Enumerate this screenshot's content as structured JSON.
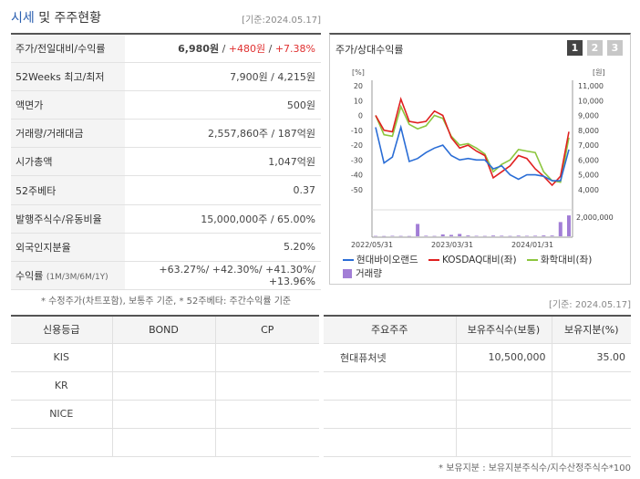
{
  "header": {
    "title_main": "시세",
    "title_rest": " 및 주주현황",
    "asof": "[기준:2024.05.17]"
  },
  "price_rows": [
    {
      "label": "주가/전일대비/수익률",
      "main": "6,980원",
      "sep1": " / ",
      "change": "+480원",
      "sep2": " / ",
      "rate": "+7.38%"
    },
    {
      "label": "52Weeks 최고/최저",
      "value": "7,900원 / 4,215원"
    },
    {
      "label": "액면가",
      "value": "500원"
    },
    {
      "label": "거래량/거래대금",
      "value": "2,557,860주 / 187억원"
    },
    {
      "label": "시가총액",
      "value": "1,047억원"
    },
    {
      "label": "52주베타",
      "value": "0.37"
    },
    {
      "label": "발행주식수/유동비율",
      "value": "15,000,000주 / 65.00%"
    },
    {
      "label": "외국인지분율",
      "value": "5.20%"
    },
    {
      "label": "수익률",
      "label_small": "(1M/3M/6M/1Y)",
      "value": "+63.27%/ +42.30%/ +41.30%/ +13.96%"
    }
  ],
  "note1": "* 수정주가(차트포함), 보통주 기준, * 52주베타: 주간수익률 기준",
  "chart": {
    "title": "주가/상대수익률",
    "tabs": [
      "1",
      "2",
      "3"
    ],
    "active_tab": 0,
    "left_unit": "[%]",
    "right_unit": "[원]",
    "colors": {
      "company": "#2a6dd6",
      "kosdaq": "#e02020",
      "chem": "#8cc63e",
      "volume": "#a27ed6"
    }
  },
  "chart_data": {
    "type": "line",
    "x_labels": [
      "2022/05/31",
      "2023/03/31",
      "2024/01/31"
    ],
    "left_axis": {
      "ticks": [
        20,
        10,
        0,
        -10,
        -20,
        -30,
        -40,
        -50
      ],
      "range": [
        -55,
        20
      ]
    },
    "right_axis": {
      "ticks": [
        "11,000",
        "10,000",
        "9,000",
        "8,000",
        "7,000",
        "6,000",
        "5,000",
        "4,000"
      ],
      "range": [
        3600,
        11000
      ]
    },
    "volume_axis": {
      "ticks": [
        "2,000,000"
      ],
      "max": 2400000
    },
    "series": [
      {
        "name": "현대바이오랜드",
        "values": [
          -8,
          -32,
          -28,
          -8,
          -31,
          -29,
          -25,
          -22,
          -20,
          -27,
          -30,
          -29,
          -30,
          -30,
          -36,
          -34,
          -40,
          -43,
          -40,
          -40,
          -41,
          -44,
          -44,
          -23
        ]
      },
      {
        "name": "KOSDAQ대비(좌)",
        "values": [
          0,
          -10,
          -11,
          11,
          -4,
          -5,
          -4,
          3,
          0,
          -15,
          -22,
          -20,
          -24,
          -27,
          -42,
          -38,
          -34,
          -27,
          -29,
          -36,
          -41,
          -47,
          -41,
          -11
        ]
      },
      {
        "name": "화학대비(좌)",
        "values": [
          0,
          -13,
          -14,
          6,
          -6,
          -9,
          -7,
          0,
          -2,
          -14,
          -20,
          -19,
          -22,
          -26,
          -38,
          -33,
          -30,
          -23,
          -24,
          -25,
          -38,
          -44,
          -45,
          -15
        ]
      }
    ],
    "volume_series": {
      "name": "거래량",
      "values": [
        40000,
        30000,
        50000,
        40000,
        30000,
        1300000,
        60000,
        40000,
        200000,
        150000,
        250000,
        90000,
        50000,
        40000,
        80000,
        60000,
        40000,
        70000,
        50000,
        60000,
        90000,
        80000,
        1500000,
        2200000
      ]
    }
  },
  "credit_table": {
    "headers": [
      "신용등급",
      "BOND",
      "CP"
    ],
    "rows": [
      [
        "KIS",
        "",
        ""
      ],
      [
        "KR",
        "",
        ""
      ],
      [
        "NICE",
        "",
        ""
      ],
      [
        "",
        "",
        ""
      ]
    ]
  },
  "holder_table": {
    "asof": "[기준: 2024.05.17]",
    "headers": [
      "주요주주",
      "보유주식수(보통)",
      "보유지분(%)"
    ],
    "rows": [
      [
        "현대퓨처넷",
        "10,500,000",
        "35.00"
      ],
      [
        "",
        "",
        ""
      ],
      [
        "",
        "",
        ""
      ],
      [
        "",
        "",
        ""
      ]
    ]
  },
  "note2": "* 보유지분 : 보유지분주식수/지수산정주식수*100"
}
